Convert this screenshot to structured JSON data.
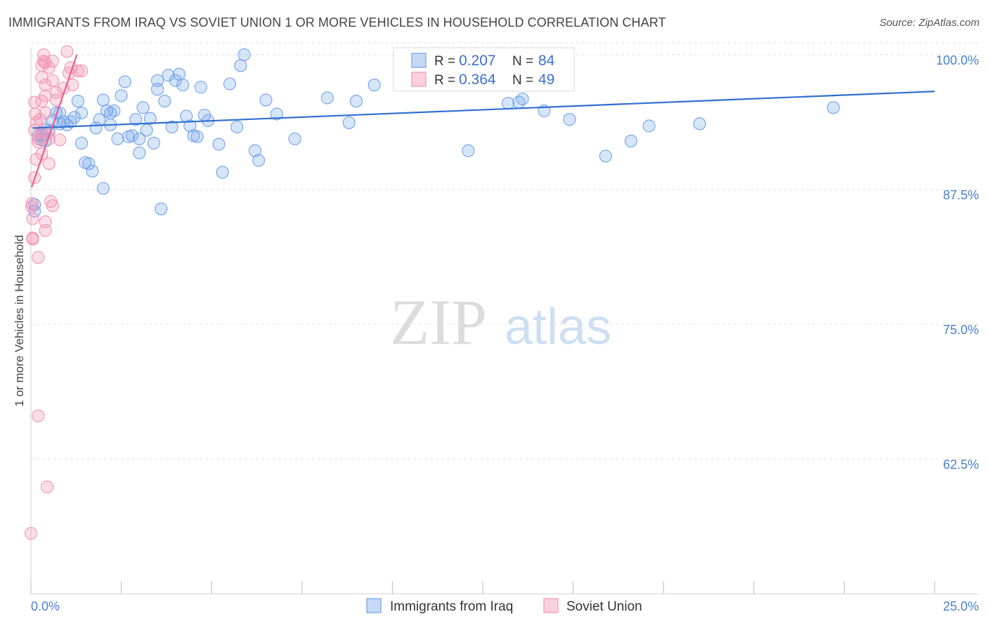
{
  "title": "IMMIGRANTS FROM IRAQ VS SOVIET UNION 1 OR MORE VEHICLES IN HOUSEHOLD CORRELATION CHART",
  "source": "Source: ZipAtlas.com",
  "watermark": {
    "zip": "ZIP",
    "atlas": "atlas"
  },
  "colors": {
    "blue": "#6fa3e8",
    "blue_line": "#2f6fd0",
    "pink": "#f294b3",
    "pink_line": "#e8608e",
    "tick": "#4a7fd0"
  },
  "legend_top": [
    {
      "r_label": "R = ",
      "r_value": "0.207",
      "n_label": "N = ",
      "n_value": "84",
      "color": "blue"
    },
    {
      "r_label": "R = ",
      "r_value": "0.364",
      "n_label": "N = ",
      "n_value": "49",
      "color": "pink"
    }
  ],
  "chart_data": {
    "type": "scatter",
    "title": "IMMIGRANTS FROM IRAQ VS SOVIET UNION 1 OR MORE VEHICLES IN HOUSEHOLD CORRELATION CHART",
    "xlabel": "",
    "ylabel": "1 or more Vehicles in Household",
    "xlim": [
      0,
      25
    ],
    "ylim": [
      50,
      101.5
    ],
    "x_tick_labels": [
      {
        "value": 0,
        "label": "0.0%"
      },
      {
        "value": 25,
        "label": "25.0%"
      }
    ],
    "y_tick_labels": [
      {
        "value": 100,
        "label": "100.0%"
      },
      {
        "value": 87.5,
        "label": "87.5%"
      },
      {
        "value": 75,
        "label": "75.0%"
      },
      {
        "value": 62.5,
        "label": "62.5%"
      }
    ],
    "series": [
      {
        "name": "Immigrants from Iraq",
        "color": "blue",
        "trend": [
          [
            0.05,
            93.2
          ],
          [
            25,
            96.6
          ]
        ],
        "points": [
          [
            0.1,
            86.1
          ],
          [
            0.1,
            85.5
          ],
          [
            0.2,
            92.5
          ],
          [
            0.3,
            92.1
          ],
          [
            0.3,
            92.5
          ],
          [
            0.4,
            93.1
          ],
          [
            0.4,
            92.0
          ],
          [
            0.5,
            93.0
          ],
          [
            0.6,
            93.9
          ],
          [
            0.7,
            94.6
          ],
          [
            0.8,
            93.6
          ],
          [
            0.8,
            94.6
          ],
          [
            0.9,
            93.8
          ],
          [
            1.0,
            93.5
          ],
          [
            1.1,
            93.8
          ],
          [
            1.2,
            94.2
          ],
          [
            1.3,
            95.7
          ],
          [
            1.4,
            94.6
          ],
          [
            1.4,
            91.8
          ],
          [
            1.5,
            90.0
          ],
          [
            1.6,
            89.9
          ],
          [
            1.7,
            89.2
          ],
          [
            1.8,
            93.2
          ],
          [
            1.9,
            94.0
          ],
          [
            2.0,
            95.8
          ],
          [
            2.0,
            87.6
          ],
          [
            2.1,
            94.8
          ],
          [
            2.2,
            93.5
          ],
          [
            2.2,
            94.6
          ],
          [
            2.3,
            94.8
          ],
          [
            2.4,
            92.2
          ],
          [
            2.5,
            96.2
          ],
          [
            2.6,
            97.5
          ],
          [
            2.7,
            92.4
          ],
          [
            2.8,
            92.5
          ],
          [
            2.9,
            94.0
          ],
          [
            3.0,
            90.9
          ],
          [
            3.0,
            92.2
          ],
          [
            3.1,
            95.1
          ],
          [
            3.2,
            93.0
          ],
          [
            3.3,
            94.1
          ],
          [
            3.4,
            91.8
          ],
          [
            3.5,
            97.6
          ],
          [
            3.5,
            96.8
          ],
          [
            3.6,
            85.7
          ],
          [
            3.7,
            95.7
          ],
          [
            3.8,
            98.1
          ],
          [
            3.9,
            93.3
          ],
          [
            4.0,
            97.6
          ],
          [
            4.1,
            98.2
          ],
          [
            4.2,
            97.2
          ],
          [
            4.3,
            94.3
          ],
          [
            4.4,
            93.4
          ],
          [
            4.5,
            92.5
          ],
          [
            4.6,
            92.4
          ],
          [
            4.7,
            97.0
          ],
          [
            4.8,
            94.4
          ],
          [
            4.9,
            93.9
          ],
          [
            5.2,
            91.7
          ],
          [
            5.3,
            89.1
          ],
          [
            5.5,
            97.3
          ],
          [
            5.7,
            93.3
          ],
          [
            5.8,
            99.0
          ],
          [
            5.9,
            100.0
          ],
          [
            6.2,
            91.1
          ],
          [
            6.3,
            90.2
          ],
          [
            6.5,
            95.8
          ],
          [
            6.8,
            94.5
          ],
          [
            7.3,
            92.2
          ],
          [
            8.2,
            96.0
          ],
          [
            8.8,
            93.7
          ],
          [
            9.0,
            95.7
          ],
          [
            9.5,
            97.2
          ],
          [
            12.1,
            91.1
          ],
          [
            13.2,
            95.5
          ],
          [
            13.6,
            95.9
          ],
          [
            13.5,
            95.6
          ],
          [
            14.2,
            94.8
          ],
          [
            14.9,
            94.0
          ],
          [
            15.9,
            90.6
          ],
          [
            16.6,
            92.0
          ],
          [
            17.1,
            93.4
          ],
          [
            18.5,
            93.6
          ],
          [
            22.2,
            95.1
          ]
        ]
      },
      {
        "name": "Soviet Union",
        "color": "pink",
        "trend": [
          [
            0.02,
            87.7
          ],
          [
            1.27,
            100.0
          ]
        ],
        "points": [
          [
            0.0,
            55.6
          ],
          [
            0.02,
            85.9
          ],
          [
            0.03,
            86.2
          ],
          [
            0.05,
            83.0
          ],
          [
            0.05,
            82.9
          ],
          [
            0.05,
            84.8
          ],
          [
            0.1,
            88.6
          ],
          [
            0.1,
            93.0
          ],
          [
            0.1,
            95.6
          ],
          [
            0.12,
            94.5
          ],
          [
            0.15,
            93.7
          ],
          [
            0.15,
            90.3
          ],
          [
            0.2,
            91.9
          ],
          [
            0.2,
            92.2
          ],
          [
            0.2,
            81.2
          ],
          [
            0.2,
            66.5
          ],
          [
            0.25,
            94.0
          ],
          [
            0.3,
            92.8
          ],
          [
            0.3,
            90.8
          ],
          [
            0.3,
            95.7
          ],
          [
            0.3,
            97.9
          ],
          [
            0.3,
            99.0
          ],
          [
            0.35,
            99.4
          ],
          [
            0.35,
            100.0
          ],
          [
            0.4,
            99.3
          ],
          [
            0.4,
            97.2
          ],
          [
            0.4,
            96.2
          ],
          [
            0.4,
            94.6
          ],
          [
            0.4,
            84.5
          ],
          [
            0.4,
            83.7
          ],
          [
            0.45,
            59.9
          ],
          [
            0.5,
            98.8
          ],
          [
            0.5,
            92.8
          ],
          [
            0.5,
            92.2
          ],
          [
            0.5,
            89.9
          ],
          [
            0.55,
            86.4
          ],
          [
            0.6,
            86.0
          ],
          [
            0.6,
            99.4
          ],
          [
            0.6,
            97.6
          ],
          [
            0.7,
            96.5
          ],
          [
            0.7,
            95.8
          ],
          [
            0.8,
            92.1
          ],
          [
            0.9,
            96.9
          ],
          [
            1.0,
            100.3
          ],
          [
            1.05,
            98.3
          ],
          [
            1.1,
            98.8
          ],
          [
            1.15,
            97.2
          ],
          [
            1.3,
            98.5
          ],
          [
            1.4,
            98.5
          ]
        ]
      }
    ]
  },
  "legend_bottom": [
    {
      "label": "Immigrants from Iraq",
      "color": "blue"
    },
    {
      "label": "Soviet Union",
      "color": "pink"
    }
  ]
}
